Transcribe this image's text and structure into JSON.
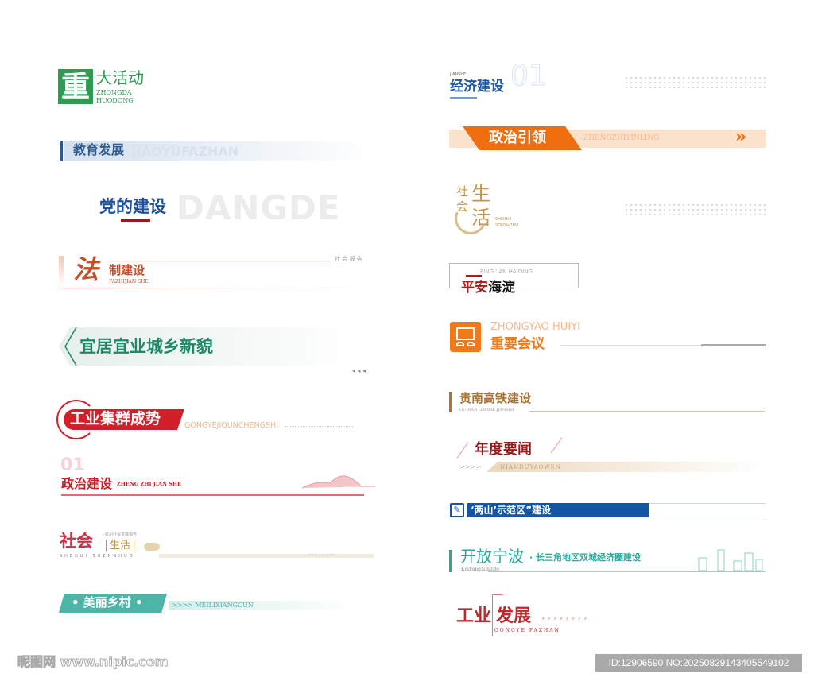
{
  "left": {
    "zhongda": {
      "glyph": "重",
      "title": "大活动",
      "sub1": "ZHONGDA",
      "sub2": "HUODONG",
      "color": "#2e9a52"
    },
    "jiaoyu": {
      "title": "教育发展",
      "bg": "JIAOYUFAZHAN",
      "color": "#2e5a8e"
    },
    "dangde": {
      "bg": "DANGDE",
      "title": "党的建设",
      "color": "#1c4f9c",
      "accent": "#9a1a1a"
    },
    "fazhi": {
      "glyph": "法",
      "title": "制建设",
      "sub": "FAZHIJIAN SHE",
      "tag": "社 会 报 告",
      "color": "#c0502a"
    },
    "yiju": {
      "title": "宜居宜业城乡新貌",
      "arrows": "◂ ◂ ◂",
      "color": "#1e8a6b"
    },
    "gongye": {
      "title": "工业集群成势",
      "sub": "GONGYEJIQUNCHENGSHI",
      "color": "#d21f2a"
    },
    "zhengzhi": {
      "num": "01",
      "title": "政治建设",
      "sub": "ZHENG ZHI JIAN SHE",
      "color": "#c4202e"
    },
    "shehui": {
      "title": "社会",
      "boxed": "生活",
      "tag": "杭州社会发展报告",
      "sub": "SHEHUI SHENGHUO",
      "arrows": ">>>>>>>>",
      "color": "#c8324a"
    },
    "meili": {
      "title": "• 美丽乡村 •",
      "sub": ">>>> MEILIXIANGCUN",
      "color": "#4cb5a6"
    }
  },
  "right": {
    "jingji": {
      "tag": "JIANSHE",
      "num": "01",
      "title": "经济建设",
      "color": "#1f5aa8"
    },
    "yinling": {
      "title": "政治引领",
      "sub": "ZHENGZHIYINLING",
      "arrows": "»",
      "color": "#ee6e10"
    },
    "shenghuo": {
      "a": "社",
      "b": "会",
      "c": "生",
      "d": "活",
      "sub1": "SHEIHUI",
      "sub2": "SHENGHUO",
      "color": "#c49448"
    },
    "pingan": {
      "sub": "PING ' AN   HAIDING",
      "red": "平安",
      "black": "海淀"
    },
    "huiyi": {
      "sub": "ZHONGYAO HUIYI",
      "title": "重要会议",
      "color": "#ee7a1c"
    },
    "gaotie": {
      "title": "贵南高铁建设",
      "sub": "GUINAN  GAOTIE  JIANSHE",
      "color": "#a8732a"
    },
    "yaowen": {
      "title": "年度要闻",
      "arrows": ">>>>",
      "sub": "NIANDUYAOWEN",
      "color": "#9a1a1a"
    },
    "liangshan": {
      "title": "‘两山’示范区”建设",
      "color": "#1456a6"
    },
    "ningbo": {
      "title": "开放宁波",
      "sub": "· 长三角地区双城经济圈建设",
      "pinyin": "KaiFangNingBo",
      "color": "#2aa99a"
    },
    "fazhan": {
      "a": "工业",
      "b": "发展",
      "arrows": "› › › › › › › ›",
      "sub": "GONGYE  FAZHAN",
      "color": "#c0282e"
    }
  },
  "footer": {
    "logo": "昵图网 www.nipic.com",
    "id": "ID:12906590 NO:20250829143405549102"
  }
}
